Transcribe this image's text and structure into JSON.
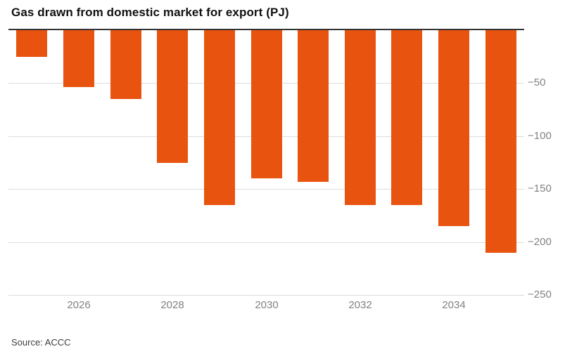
{
  "title": "Gas drawn from domestic market for export (PJ)",
  "source": "Source: ACCC",
  "colors": {
    "bar": "#e8530f",
    "axis_line": "#333333",
    "gridline": "#dcdcdc",
    "tick_label": "#828282",
    "title": "#111111"
  },
  "chart_data": {
    "type": "bar",
    "title": "Gas drawn from domestic market for export (PJ)",
    "categories": [
      2025,
      2026,
      2027,
      2028,
      2029,
      2030,
      2031,
      2032,
      2033,
      2034,
      2035
    ],
    "values": [
      -25,
      -54,
      -65,
      -125,
      -165,
      -140,
      -143,
      -165,
      -165,
      -185,
      -210
    ],
    "xlabel": "",
    "ylabel": "PJ",
    "ylim": [
      -250,
      0
    ],
    "yticks": [
      -50,
      -100,
      -150,
      -200,
      -250
    ],
    "xticks": [
      2026,
      2028,
      2030,
      2032,
      2034
    ],
    "grid": true,
    "legend": "none",
    "bar_color": "#e8530f",
    "source": "Source: ACCC"
  }
}
